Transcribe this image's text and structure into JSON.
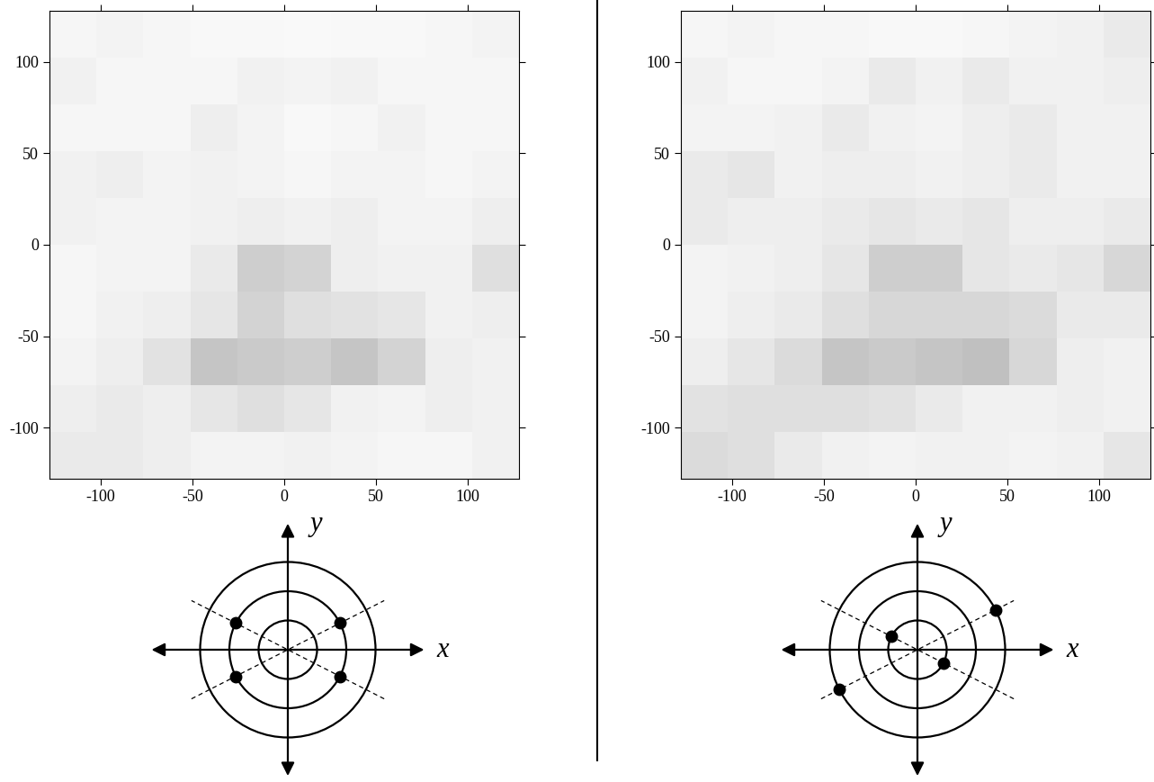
{
  "chart_data": [
    {
      "type": "heatmap",
      "xlim": [
        -128,
        128
      ],
      "ylim": [
        -128,
        128
      ],
      "xticks": [
        -100,
        -50,
        0,
        50,
        100
      ],
      "yticks": [
        -100,
        -50,
        0,
        50,
        100
      ],
      "zlim": [
        0,
        1
      ],
      "cells": [
        [
          0.08,
          0.1,
          0.08,
          0.06,
          0.06,
          0.05,
          0.06,
          0.06,
          0.08,
          0.1
        ],
        [
          0.12,
          0.08,
          0.08,
          0.08,
          0.12,
          0.1,
          0.12,
          0.08,
          0.08,
          0.08
        ],
        [
          0.08,
          0.08,
          0.08,
          0.14,
          0.1,
          0.06,
          0.08,
          0.12,
          0.08,
          0.08
        ],
        [
          0.12,
          0.14,
          0.1,
          0.12,
          0.1,
          0.08,
          0.1,
          0.1,
          0.08,
          0.1
        ],
        [
          0.12,
          0.1,
          0.1,
          0.12,
          0.14,
          0.12,
          0.14,
          0.1,
          0.1,
          0.14
        ],
        [
          0.08,
          0.1,
          0.1,
          0.16,
          0.3,
          0.28,
          0.14,
          0.12,
          0.12,
          0.22
        ],
        [
          0.08,
          0.12,
          0.14,
          0.18,
          0.28,
          0.22,
          0.2,
          0.18,
          0.12,
          0.14
        ],
        [
          0.1,
          0.14,
          0.2,
          0.34,
          0.32,
          0.3,
          0.34,
          0.28,
          0.14,
          0.12
        ],
        [
          0.14,
          0.16,
          0.14,
          0.18,
          0.22,
          0.18,
          0.12,
          0.1,
          0.14,
          0.12
        ],
        [
          0.16,
          0.16,
          0.14,
          0.1,
          0.1,
          0.12,
          0.1,
          0.08,
          0.08,
          0.12
        ]
      ],
      "diagram": {
        "x_label": "x",
        "y_label": "y",
        "circle_radii": [
          1,
          2,
          3
        ],
        "line_angles": [
          27,
          153
        ],
        "points": [
          {
            "r": 2,
            "angle": 27
          },
          {
            "r": 2,
            "angle": 153
          },
          {
            "r": 2,
            "angle": 207
          },
          {
            "r": 2,
            "angle": 333
          }
        ]
      }
    },
    {
      "type": "heatmap",
      "xlim": [
        -128,
        128
      ],
      "ylim": [
        -128,
        128
      ],
      "xticks": [
        -100,
        -50,
        0,
        50,
        100
      ],
      "yticks": [
        -100,
        -50,
        0,
        50,
        100
      ],
      "zlim": [
        0,
        1
      ],
      "cells": [
        [
          0.08,
          0.1,
          0.08,
          0.08,
          0.06,
          0.06,
          0.08,
          0.1,
          0.12,
          0.16
        ],
        [
          0.12,
          0.08,
          0.08,
          0.1,
          0.16,
          0.12,
          0.16,
          0.12,
          0.12,
          0.14
        ],
        [
          0.1,
          0.1,
          0.12,
          0.16,
          0.12,
          0.1,
          0.14,
          0.16,
          0.12,
          0.12
        ],
        [
          0.16,
          0.18,
          0.12,
          0.14,
          0.14,
          0.12,
          0.14,
          0.16,
          0.12,
          0.12
        ],
        [
          0.16,
          0.14,
          0.14,
          0.16,
          0.18,
          0.16,
          0.18,
          0.14,
          0.14,
          0.16
        ],
        [
          0.1,
          0.12,
          0.14,
          0.18,
          0.3,
          0.3,
          0.18,
          0.16,
          0.18,
          0.26
        ],
        [
          0.1,
          0.14,
          0.16,
          0.22,
          0.26,
          0.26,
          0.26,
          0.24,
          0.16,
          0.16
        ],
        [
          0.14,
          0.18,
          0.24,
          0.34,
          0.32,
          0.34,
          0.36,
          0.26,
          0.14,
          0.12
        ],
        [
          0.2,
          0.22,
          0.22,
          0.22,
          0.2,
          0.16,
          0.12,
          0.12,
          0.14,
          0.12
        ],
        [
          0.24,
          0.22,
          0.16,
          0.12,
          0.1,
          0.12,
          0.12,
          0.1,
          0.12,
          0.18
        ]
      ],
      "diagram": {
        "x_label": "x",
        "y_label": "y",
        "circle_radii": [
          1,
          2,
          3
        ],
        "line_angles": [
          27,
          153
        ],
        "points": [
          {
            "r": 3,
            "angle": 27
          },
          {
            "r": 1,
            "angle": 153
          },
          {
            "r": 3,
            "angle": 207
          },
          {
            "r": 1,
            "angle": 333
          }
        ]
      }
    }
  ]
}
